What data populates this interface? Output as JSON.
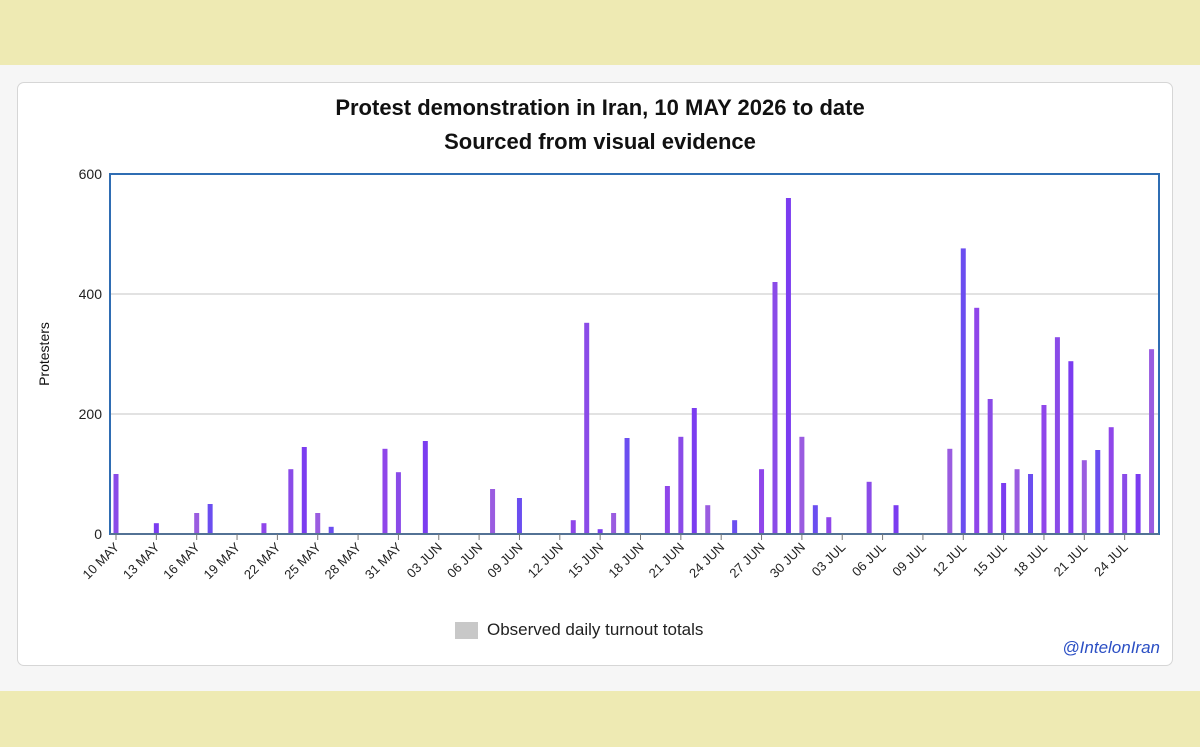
{
  "chart_data": {
    "type": "bar",
    "title": "Protest demonstration in Iran, 10 MAY 2026 to date",
    "subtitle": "Sourced from visual evidence",
    "ylabel": "Protesters",
    "xlabel": "",
    "ylim": [
      0,
      600
    ],
    "y_ticks": [
      0,
      200,
      400,
      600
    ],
    "grid": true,
    "legend_position": "bottom-center",
    "series": [
      {
        "name": "Observed daily turnout totals",
        "color": "#c8c8c8"
      }
    ],
    "x_tick_labels": [
      "10 MAY",
      "13 MAY",
      "16 MAY",
      "19 MAY",
      "22 MAY",
      "25 MAY",
      "28 MAY",
      "31 MAY",
      "03 JUN",
      "06 JUN",
      "09 JUN",
      "12 JUN",
      "15 JUN",
      "18 JUN",
      "21 JUN",
      "24 JUN",
      "27 JUN",
      "30 JUN",
      "03 JUL",
      "06 JUL",
      "09 JUL",
      "12 JUL",
      "15 JUL",
      "18 JUL",
      "21 JUL",
      "24 JUL"
    ],
    "days": 78,
    "bars": [
      {
        "day": 0,
        "value": 100
      },
      {
        "day": 3,
        "value": 18
      },
      {
        "day": 6,
        "value": 35
      },
      {
        "day": 7,
        "value": 50
      },
      {
        "day": 11,
        "value": 18
      },
      {
        "day": 13,
        "value": 108
      },
      {
        "day": 14,
        "value": 145
      },
      {
        "day": 15,
        "value": 35
      },
      {
        "day": 16,
        "value": 12
      },
      {
        "day": 20,
        "value": 142
      },
      {
        "day": 21,
        "value": 103
      },
      {
        "day": 23,
        "value": 155
      },
      {
        "day": 28,
        "value": 75
      },
      {
        "day": 30,
        "value": 60
      },
      {
        "day": 34,
        "value": 23
      },
      {
        "day": 35,
        "value": 352
      },
      {
        "day": 36,
        "value": 8
      },
      {
        "day": 37,
        "value": 35
      },
      {
        "day": 38,
        "value": 160
      },
      {
        "day": 41,
        "value": 80
      },
      {
        "day": 42,
        "value": 162
      },
      {
        "day": 43,
        "value": 210
      },
      {
        "day": 44,
        "value": 48
      },
      {
        "day": 46,
        "value": 23
      },
      {
        "day": 48,
        "value": 108
      },
      {
        "day": 49,
        "value": 420
      },
      {
        "day": 50,
        "value": 560
      },
      {
        "day": 51,
        "value": 162
      },
      {
        "day": 52,
        "value": 48
      },
      {
        "day": 53,
        "value": 28
      },
      {
        "day": 56,
        "value": 87
      },
      {
        "day": 58,
        "value": 48
      },
      {
        "day": 62,
        "value": 142
      },
      {
        "day": 63,
        "value": 476
      },
      {
        "day": 64,
        "value": 377
      },
      {
        "day": 65,
        "value": 225
      },
      {
        "day": 66,
        "value": 85
      },
      {
        "day": 67,
        "value": 108
      },
      {
        "day": 68,
        "value": 100
      },
      {
        "day": 69,
        "value": 215
      },
      {
        "day": 70,
        "value": 328
      },
      {
        "day": 71,
        "value": 288
      },
      {
        "day": 72,
        "value": 123
      },
      {
        "day": 73,
        "value": 140
      },
      {
        "day": 74,
        "value": 178
      },
      {
        "day": 75,
        "value": 100
      },
      {
        "day": 76,
        "value": 100
      },
      {
        "day": 77,
        "value": 308
      }
    ],
    "bar_colors": [
      "#8a4be8",
      "#7b3cf0",
      "#9a5ce0",
      "#6b4ef0",
      "#8f46ea"
    ]
  },
  "credit": "@IntelonIran"
}
